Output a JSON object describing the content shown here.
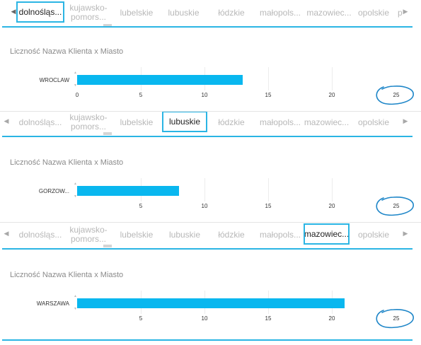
{
  "arrows": {
    "left": "◀",
    "right": "▶"
  },
  "panels": [
    {
      "tabs": [
        "dolnośląs...",
        "kujawsko-\npomors...",
        "lubelskie",
        "lubuskie",
        "łódzkie",
        "małopols...",
        "mazowiec...",
        "opolskie",
        "p"
      ],
      "selected": 0,
      "chart_title": "Liczność Nazwa Klienta x Miasto",
      "bar_label": "WROCLAW",
      "bar_value": 13,
      "ticks": [
        "0",
        "5",
        "10",
        "15",
        "20",
        "25"
      ]
    },
    {
      "tabs": [
        "dolnośląs...",
        "kujawsko-\npomors...",
        "lubelskie",
        "lubuskie",
        "łódzkie",
        "małopols...",
        "mazowiec...",
        "opolskie"
      ],
      "selected": 3,
      "chart_title": "Liczność Nazwa Klienta x Miasto",
      "bar_label": "GORZOW...",
      "bar_value": 8,
      "ticks": [
        "5",
        "10",
        "15",
        "20",
        "25"
      ]
    },
    {
      "tabs": [
        "dolnośląs...",
        "kujawsko-\npomors...",
        "lubelskie",
        "lubuskie",
        "łódzkie",
        "małopols...",
        "mazowiec...",
        "opolskie"
      ],
      "selected": 6,
      "chart_title": "Liczność Nazwa Klienta x Miasto",
      "bar_label": "WARSZAWA",
      "bar_value": 21,
      "ticks": [
        "5",
        "10",
        "15",
        "20",
        "25"
      ]
    }
  ],
  "chart_data": [
    {
      "type": "bar",
      "title": "Liczność Nazwa Klienta x Miasto",
      "categories": [
        "WROCLAW"
      ],
      "values": [
        13
      ],
      "xlim": [
        0,
        25
      ]
    },
    {
      "type": "bar",
      "title": "Liczność Nazwa Klienta x Miasto",
      "categories": [
        "GORZOW..."
      ],
      "values": [
        8
      ],
      "xlim": [
        0,
        25
      ]
    },
    {
      "type": "bar",
      "title": "Liczność Nazwa Klienta x Miasto",
      "categories": [
        "WARSZAWA"
      ],
      "values": [
        21
      ],
      "xlim": [
        0,
        25
      ]
    }
  ],
  "accent_color": "#2bb5e4",
  "bar_color": "#09b7ef",
  "annotation_color": "#1e86c8"
}
